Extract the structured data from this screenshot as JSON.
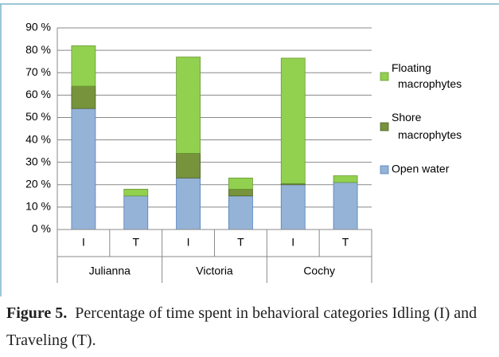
{
  "chart_data": {
    "type": "stacked_bar",
    "categories": [
      "I",
      "T",
      "I",
      "T",
      "I",
      "T"
    ],
    "groups": [
      "Julianna",
      "Victoria",
      "Cochy"
    ],
    "series": [
      {
        "name": "Open water",
        "color": "#95b3d7",
        "values": [
          54,
          15,
          23,
          15,
          20,
          21
        ]
      },
      {
        "name": "Shore macrophytes",
        "color": "#77933c",
        "values": [
          10,
          0,
          11,
          3,
          0.5,
          0
        ]
      },
      {
        "name": "Floating macrophytes",
        "color": "#92d050",
        "values": [
          18,
          3,
          43,
          5,
          56,
          3
        ]
      }
    ],
    "ylim": [
      0,
      90
    ],
    "yticks": [
      {
        "value": 0,
        "label": "0 %"
      },
      {
        "value": 10,
        "label": "10 %"
      },
      {
        "value": 20,
        "label": "20 %"
      },
      {
        "value": 30,
        "label": "30 %"
      },
      {
        "value": 40,
        "label": "40 %"
      },
      {
        "value": 50,
        "label": "50 %"
      },
      {
        "value": 60,
        "label": "60 %"
      },
      {
        "value": 70,
        "label": "70 %"
      },
      {
        "value": 80,
        "label": "80 %"
      },
      {
        "value": 90,
        "label": "90 %"
      }
    ],
    "grid": true
  },
  "caption": {
    "label": "Figure 5.",
    "text": "Percentage of time spent in behavioral categories Idling (I) and Traveling (T)."
  }
}
